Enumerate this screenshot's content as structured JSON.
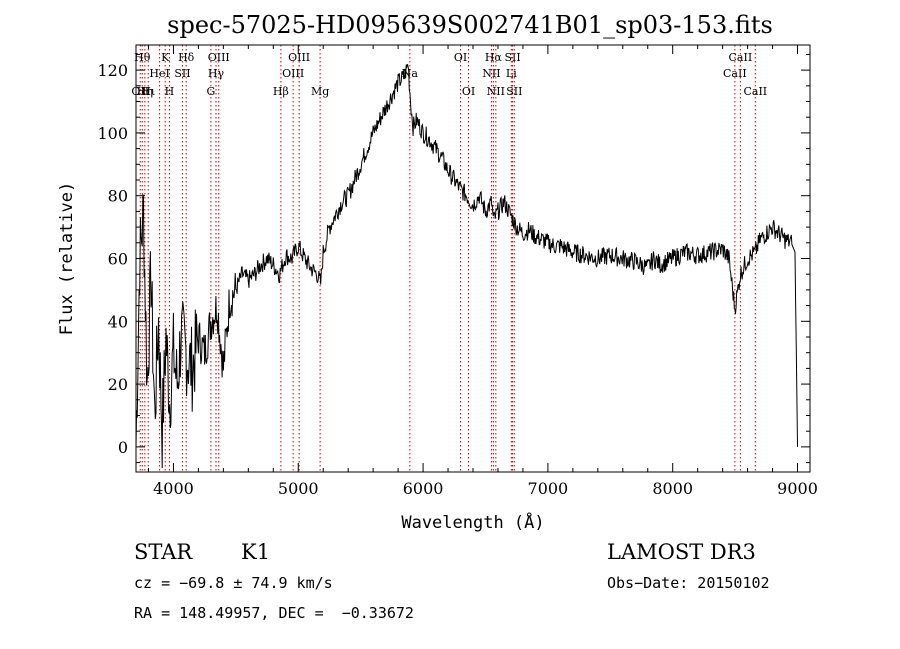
{
  "chart_data": {
    "type": "line",
    "title": "spec-57025-HD095639S002741B01_sp03-153.fits",
    "xlabel": "Wavelength (Å)",
    "ylabel": "Flux (relative)",
    "xlim": [
      3700,
      9100
    ],
    "ylim": [
      -8,
      128
    ],
    "xticks": [
      4000,
      5000,
      6000,
      7000,
      8000,
      9000
    ],
    "yticks": [
      0,
      20,
      40,
      60,
      80,
      100,
      120
    ],
    "grid": false,
    "line_color": "#000000",
    "marker_color": "#cc0000",
    "series": [
      {
        "name": "flux",
        "x": [
          3700,
          3730,
          3760,
          3790,
          3820,
          3850,
          3880,
          3910,
          3940,
          3970,
          4000,
          4030,
          4060,
          4100,
          4150,
          4200,
          4250,
          4300,
          4350,
          4400,
          4450,
          4500,
          4550,
          4600,
          4650,
          4700,
          4750,
          4800,
          4850,
          4900,
          4950,
          5000,
          5050,
          5100,
          5150,
          5180,
          5200,
          5250,
          5300,
          5350,
          5400,
          5450,
          5500,
          5550,
          5600,
          5650,
          5700,
          5750,
          5800,
          5850,
          5880,
          5900,
          5920,
          5950,
          6000,
          6050,
          6100,
          6150,
          6200,
          6250,
          6300,
          6350,
          6400,
          6450,
          6500,
          6550,
          6563,
          6600,
          6650,
          6700,
          6750,
          6800,
          6850,
          6900,
          6950,
          7000,
          7050,
          7100,
          7150,
          7200,
          7300,
          7400,
          7500,
          7600,
          7700,
          7800,
          7850,
          7900,
          8000,
          8100,
          8200,
          8300,
          8400,
          8450,
          8498,
          8542,
          8600,
          8662,
          8700,
          8750,
          8800,
          8850,
          8900,
          8950,
          8980,
          9000
        ],
        "values": [
          0,
          60,
          75,
          20,
          55,
          10,
          40,
          5,
          35,
          15,
          30,
          20,
          35,
          30,
          25,
          35,
          30,
          40,
          45,
          25,
          47,
          50,
          55,
          53,
          55,
          58,
          60,
          58,
          55,
          61,
          60,
          64,
          60,
          57,
          55,
          52,
          62,
          70,
          74,
          78,
          80,
          85,
          90,
          95,
          100,
          104,
          108,
          112,
          116,
          118,
          122,
          110,
          102,
          104,
          100,
          98,
          95,
          92,
          88,
          85,
          82,
          80,
          77,
          80,
          75,
          78,
          72,
          75,
          78,
          74,
          70,
          68,
          69,
          67,
          66,
          65,
          64,
          64,
          63,
          62,
          61,
          60,
          61,
          60,
          59,
          57,
          60,
          58,
          60,
          62,
          61,
          62,
          63,
          60,
          44,
          55,
          60,
          62,
          66,
          68,
          70,
          68,
          66,
          65,
          62,
          0
        ]
      }
    ],
    "line_markers": [
      {
        "wl": 3734,
        "label": "OII",
        "row": 2
      },
      {
        "wl": 3750,
        "label": "Hθ",
        "row": 0
      },
      {
        "wl": 3771,
        "label": "Hη",
        "row": 2
      },
      {
        "wl": 3798,
        "label": "Hι",
        "row": 2
      },
      {
        "wl": 3889,
        "label": "HeI",
        "row": 1
      },
      {
        "wl": 3934,
        "label": "K",
        "row": 0
      },
      {
        "wl": 3968,
        "label": "H",
        "row": 2
      },
      {
        "wl": 4072,
        "label": "SII",
        "row": 1
      },
      {
        "wl": 4102,
        "label": "Hδ",
        "row": 0
      },
      {
        "wl": 4300,
        "label": "G",
        "row": 2
      },
      {
        "wl": 4341,
        "label": "Hγ",
        "row": 1
      },
      {
        "wl": 4363,
        "label": "OIII",
        "row": 0
      },
      {
        "wl": 4861,
        "label": "Hβ",
        "row": 2
      },
      {
        "wl": 4959,
        "label": "OIII",
        "row": 1
      },
      {
        "wl": 5007,
        "label": "OIII",
        "row": 0
      },
      {
        "wl": 5175,
        "label": "Mg",
        "row": 2
      },
      {
        "wl": 5894,
        "label": "Na",
        "row": 1
      },
      {
        "wl": 6300,
        "label": "OI",
        "row": 0
      },
      {
        "wl": 6364,
        "label": "OI",
        "row": 2
      },
      {
        "wl": 6548,
        "label": "NII",
        "row": 1
      },
      {
        "wl": 6563,
        "label": "Hα",
        "row": 0
      },
      {
        "wl": 6583,
        "label": "NII",
        "row": 2
      },
      {
        "wl": 6707,
        "label": "Li",
        "row": 1
      },
      {
        "wl": 6717,
        "label": "SII",
        "row": 0
      },
      {
        "wl": 6731,
        "label": "SII",
        "row": 2
      },
      {
        "wl": 8498,
        "label": "CaII",
        "row": 1
      },
      {
        "wl": 8542,
        "label": "CaII",
        "row": 0
      },
      {
        "wl": 8662,
        "label": "CaII",
        "row": 2
      }
    ]
  },
  "info": {
    "object_class": "STAR",
    "subclass": "K1",
    "survey": "LAMOST DR3",
    "redshift_line": "cz = −69.8 ± 74.9 km/s",
    "obs_date": "Obs−Date: 20150102",
    "coords_line": "RA = 148.49957, DEC =  −0.33672"
  }
}
